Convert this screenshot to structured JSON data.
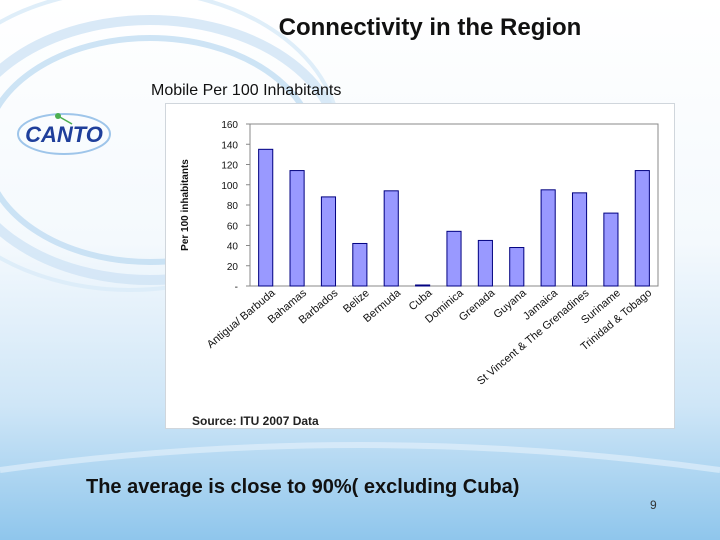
{
  "slide": {
    "title": "Connectivity in the Region",
    "subtitle": "Mobile Per 100 Inhabitants",
    "logo_text": "CANTO",
    "source": "Source: ITU 2007 Data",
    "footnote": "The average is close to 90%( excluding Cuba)",
    "page_number": "9"
  },
  "colors": {
    "bar_fill": "#9999ff",
    "bar_stroke": "#000080",
    "logo_blue": "#1f3f9b",
    "logo_green": "#4caf50"
  },
  "chart_data": {
    "type": "bar",
    "title": "",
    "xlabel": "",
    "ylabel": "Per 100 inhabitants",
    "ylim": [
      0,
      160
    ],
    "yticks": [
      0,
      20,
      40,
      60,
      80,
      100,
      120,
      140,
      160
    ],
    "ytick_labels": [
      "-",
      "20",
      "40",
      "60",
      "80",
      "100",
      "120",
      "140",
      "160"
    ],
    "grid": false,
    "legend": "none",
    "categories": [
      "Antigua/ Barbuda",
      "Bahamas",
      "Barbados",
      "Belize",
      "Bermuda",
      "Cuba",
      "Dominica",
      "Grenada",
      "Guyana",
      "Jamaica",
      "St Vincent & The Grenadines",
      "Suriname",
      "Trinidad & Tobago"
    ],
    "values": [
      135,
      114,
      88,
      42,
      94,
      1,
      54,
      45,
      38,
      95,
      92,
      72,
      114
    ]
  }
}
